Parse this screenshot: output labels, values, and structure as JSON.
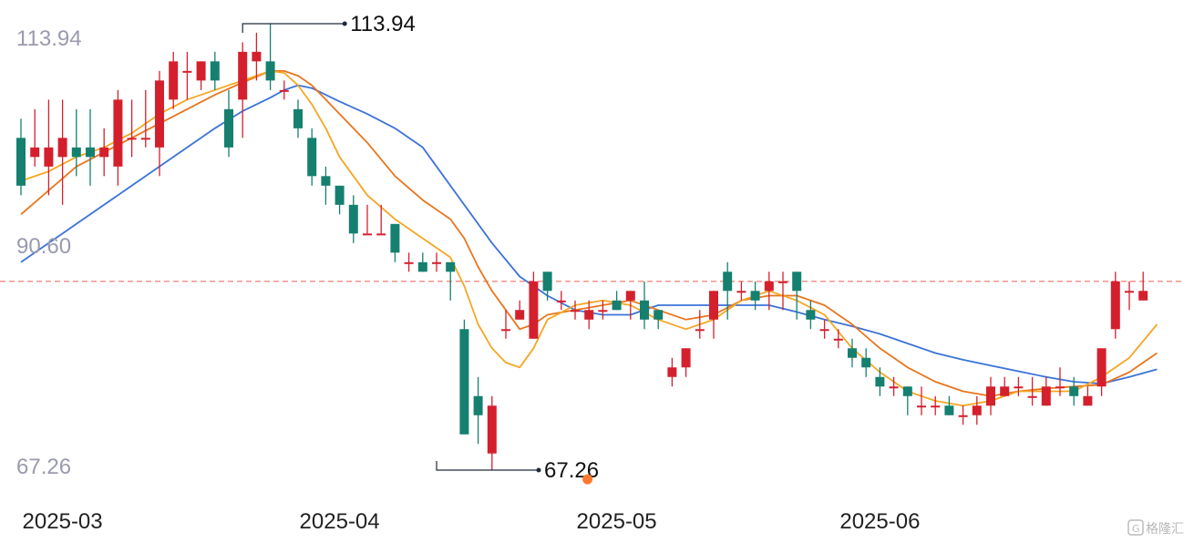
{
  "chart_data": {
    "type": "candlestick",
    "y_ticks": [
      "113.94",
      "90.60",
      "67.26"
    ],
    "ylim": [
      67.26,
      113.94
    ],
    "x_tick_labels": [
      {
        "label": "2025-03",
        "index": 3
      },
      {
        "label": "2025-04",
        "index": 23
      },
      {
        "label": "2025-05",
        "index": 43
      },
      {
        "label": "2025-06",
        "index": 62
      }
    ],
    "reference_line": {
      "value": 87.0,
      "color": "#f08a80"
    },
    "annotations": {
      "high": {
        "label": "113.94",
        "value": 113.94,
        "index": 16
      },
      "low": {
        "label": "67.26",
        "value": 67.26,
        "index": 30
      }
    },
    "marker_dot": {
      "index": 43,
      "value": 66.3,
      "color": "#ff7a2f"
    },
    "colors": {
      "up": "#d4202d",
      "down": "#15806f",
      "ma_short": "#f5a623",
      "ma_mid": "#e8761e",
      "ma_long": "#3b73d9"
    },
    "candles": [
      [
        102,
        97,
        104,
        96
      ],
      [
        100,
        101,
        105,
        99
      ],
      [
        99,
        101,
        106,
        96
      ],
      [
        100,
        102,
        106,
        95
      ],
      [
        101,
        100,
        105,
        98
      ],
      [
        101,
        100,
        105,
        97
      ],
      [
        100,
        101,
        103,
        98
      ],
      [
        99,
        106,
        107,
        97
      ],
      [
        102,
        102,
        106,
        100
      ],
      [
        102,
        102,
        107,
        101
      ],
      [
        101,
        108,
        109,
        98
      ],
      [
        106,
        110,
        111,
        105
      ],
      [
        109,
        109,
        111,
        106
      ],
      [
        108,
        110,
        110,
        107
      ],
      [
        110,
        108,
        111,
        107
      ],
      [
        105,
        101,
        107,
        100
      ],
      [
        106,
        111,
        112,
        102
      ],
      [
        110,
        111,
        113,
        108
      ],
      [
        110,
        108,
        113.94,
        107
      ],
      [
        107,
        107,
        108,
        106
      ],
      [
        105,
        103,
        106,
        102
      ],
      [
        102,
        98,
        103,
        97
      ],
      [
        98,
        97,
        99,
        95
      ],
      [
        97,
        95,
        97,
        94
      ],
      [
        95,
        92,
        96,
        91
      ],
      [
        92,
        92,
        95,
        92
      ],
      [
        92,
        92,
        95,
        92
      ],
      [
        93,
        90,
        93,
        89
      ],
      [
        89,
        89,
        90,
        88
      ],
      [
        89,
        88,
        90,
        88
      ],
      [
        89,
        89,
        90,
        88
      ],
      [
        89,
        88,
        89,
        85
      ],
      [
        82,
        71,
        83,
        71
      ],
      [
        75,
        73,
        77,
        70
      ],
      [
        69,
        74,
        75,
        67.26
      ],
      [
        82,
        82,
        84,
        81
      ],
      [
        83,
        84,
        85,
        83
      ],
      [
        81,
        87,
        88,
        81
      ],
      [
        88,
        86,
        88,
        85
      ],
      [
        85,
        85,
        86,
        84
      ],
      [
        84,
        84,
        85,
        83
      ],
      [
        83,
        84,
        85,
        82
      ],
      [
        84,
        84,
        85,
        83
      ],
      [
        85,
        84,
        86,
        84
      ],
      [
        85,
        86,
        86,
        83
      ],
      [
        85,
        83,
        87,
        82
      ],
      [
        84,
        83,
        84,
        82
      ],
      [
        77,
        78,
        79,
        76
      ],
      [
        78,
        80,
        80,
        77
      ],
      [
        82,
        82,
        84,
        81
      ],
      [
        83,
        86,
        86,
        81
      ],
      [
        88,
        86,
        89,
        83
      ],
      [
        86,
        86,
        87,
        85
      ],
      [
        86,
        85,
        87,
        84
      ],
      [
        86,
        87,
        88,
        84
      ],
      [
        87,
        87,
        88,
        84
      ],
      [
        88,
        86,
        88,
        83
      ],
      [
        84,
        83,
        85,
        82
      ],
      [
        82,
        82,
        83,
        81
      ],
      [
        81,
        81,
        82,
        80
      ],
      [
        80,
        79,
        81,
        78
      ],
      [
        79,
        78,
        80,
        77
      ],
      [
        77,
        76,
        78,
        75
      ],
      [
        76,
        76,
        77,
        75
      ],
      [
        76,
        75,
        76,
        73
      ],
      [
        74,
        74,
        76,
        73
      ],
      [
        74,
        74,
        75,
        73
      ],
      [
        74,
        73,
        75,
        73
      ],
      [
        73,
        73,
        74,
        72
      ],
      [
        73,
        74,
        75,
        72
      ],
      [
        74,
        76,
        77,
        73
      ],
      [
        75,
        76,
        77,
        75
      ],
      [
        76,
        76,
        77,
        75
      ],
      [
        75,
        75,
        77,
        74
      ],
      [
        74,
        76,
        77,
        74
      ],
      [
        76,
        76,
        78,
        75
      ],
      [
        76,
        75,
        77,
        74
      ],
      [
        74,
        75,
        76,
        74
      ],
      [
        76,
        80,
        80,
        75
      ],
      [
        82,
        87,
        88,
        81
      ],
      [
        86,
        86,
        87,
        84
      ],
      [
        85,
        86,
        88,
        85
      ]
    ],
    "ma_short": [
      [
        0,
        97.5
      ],
      [
        2,
        98.5
      ],
      [
        4,
        100.0
      ],
      [
        6,
        101.0
      ],
      [
        8,
        102.5
      ],
      [
        10,
        104.5
      ],
      [
        12,
        106.0
      ],
      [
        14,
        107.0
      ],
      [
        16,
        108.0
      ],
      [
        18,
        109.0
      ],
      [
        19,
        108.8
      ],
      [
        20,
        107.5
      ],
      [
        21,
        105.5
      ],
      [
        22,
        103.0
      ],
      [
        23,
        100.0
      ],
      [
        25,
        96.0
      ],
      [
        27,
        93.5
      ],
      [
        29,
        91.5
      ],
      [
        31,
        89.5
      ],
      [
        32,
        86.5
      ],
      [
        33,
        82.5
      ],
      [
        34,
        80.0
      ],
      [
        35,
        78.5
      ],
      [
        36,
        78.0
      ],
      [
        37,
        80.0
      ],
      [
        38,
        83.0
      ],
      [
        40,
        84.5
      ],
      [
        42,
        85.0
      ],
      [
        44,
        84.5
      ],
      [
        46,
        83.0
      ],
      [
        48,
        82.0
      ],
      [
        50,
        83.0
      ],
      [
        52,
        85.0
      ],
      [
        54,
        86.0
      ],
      [
        56,
        85.0
      ],
      [
        58,
        83.5
      ],
      [
        60,
        80.0
      ],
      [
        62,
        77.5
      ],
      [
        64,
        75.5
      ],
      [
        66,
        74.5
      ],
      [
        68,
        74.0
      ],
      [
        70,
        74.5
      ],
      [
        72,
        75.5
      ],
      [
        74,
        75.5
      ],
      [
        76,
        75.5
      ],
      [
        78,
        77.0
      ],
      [
        80,
        79.0
      ],
      [
        82,
        82.5
      ]
    ],
    "ma_mid": [
      [
        0,
        94.0
      ],
      [
        2,
        96.5
      ],
      [
        4,
        99.0
      ],
      [
        6,
        100.5
      ],
      [
        8,
        102.0
      ],
      [
        10,
        103.5
      ],
      [
        12,
        105.0
      ],
      [
        14,
        106.5
      ],
      [
        16,
        107.8
      ],
      [
        18,
        109.0
      ],
      [
        19,
        109.0
      ],
      [
        20,
        108.5
      ],
      [
        21,
        107.5
      ],
      [
        22,
        106.0
      ],
      [
        23,
        104.5
      ],
      [
        25,
        101.5
      ],
      [
        27,
        98.0
      ],
      [
        29,
        95.5
      ],
      [
        31,
        93.5
      ],
      [
        32,
        91.5
      ],
      [
        33,
        88.5
      ],
      [
        34,
        86.0
      ],
      [
        35,
        84.0
      ],
      [
        36,
        82.0
      ],
      [
        37,
        82.5
      ],
      [
        38,
        83.5
      ],
      [
        40,
        84.0
      ],
      [
        42,
        84.5
      ],
      [
        44,
        85.0
      ],
      [
        46,
        84.0
      ],
      [
        48,
        83.0
      ],
      [
        50,
        83.5
      ],
      [
        52,
        85.0
      ],
      [
        54,
        85.5
      ],
      [
        56,
        85.5
      ],
      [
        58,
        84.5
      ],
      [
        60,
        82.5
      ],
      [
        62,
        80.0
      ],
      [
        64,
        78.0
      ],
      [
        66,
        76.5
      ],
      [
        68,
        75.5
      ],
      [
        70,
        75.0
      ],
      [
        72,
        75.5
      ],
      [
        74,
        75.8
      ],
      [
        76,
        76.0
      ],
      [
        78,
        76.2
      ],
      [
        80,
        77.5
      ],
      [
        82,
        79.5
      ]
    ],
    "ma_long": [
      [
        0,
        89.0
      ],
      [
        2,
        91.0
      ],
      [
        4,
        93.0
      ],
      [
        6,
        95.0
      ],
      [
        8,
        97.0
      ],
      [
        10,
        99.0
      ],
      [
        12,
        101.0
      ],
      [
        14,
        103.0
      ],
      [
        16,
        104.8
      ],
      [
        18,
        106.2
      ],
      [
        19,
        107.0
      ],
      [
        20,
        107.5
      ],
      [
        21,
        107.2
      ],
      [
        22,
        106.5
      ],
      [
        23,
        105.8
      ],
      [
        25,
        104.5
      ],
      [
        27,
        103.0
      ],
      [
        29,
        101.0
      ],
      [
        30,
        99.0
      ],
      [
        32,
        95.0
      ],
      [
        34,
        91.0
      ],
      [
        36,
        87.5
      ],
      [
        38,
        85.5
      ],
      [
        40,
        84.0
      ],
      [
        42,
        83.5
      ],
      [
        44,
        83.5
      ],
      [
        46,
        84.5
      ],
      [
        48,
        84.5
      ],
      [
        50,
        84.5
      ],
      [
        52,
        84.5
      ],
      [
        54,
        84.5
      ],
      [
        56,
        83.8
      ],
      [
        58,
        83.0
      ],
      [
        60,
        82.3
      ],
      [
        62,
        81.5
      ],
      [
        64,
        80.5
      ],
      [
        66,
        79.5
      ],
      [
        68,
        78.8
      ],
      [
        70,
        78.2
      ],
      [
        72,
        77.6
      ],
      [
        74,
        77.0
      ],
      [
        76,
        76.5
      ],
      [
        78,
        76.3
      ],
      [
        80,
        77.0
      ],
      [
        82,
        77.8
      ]
    ]
  },
  "watermark": {
    "text": "格隆汇",
    "icon": "g-logo-icon"
  }
}
